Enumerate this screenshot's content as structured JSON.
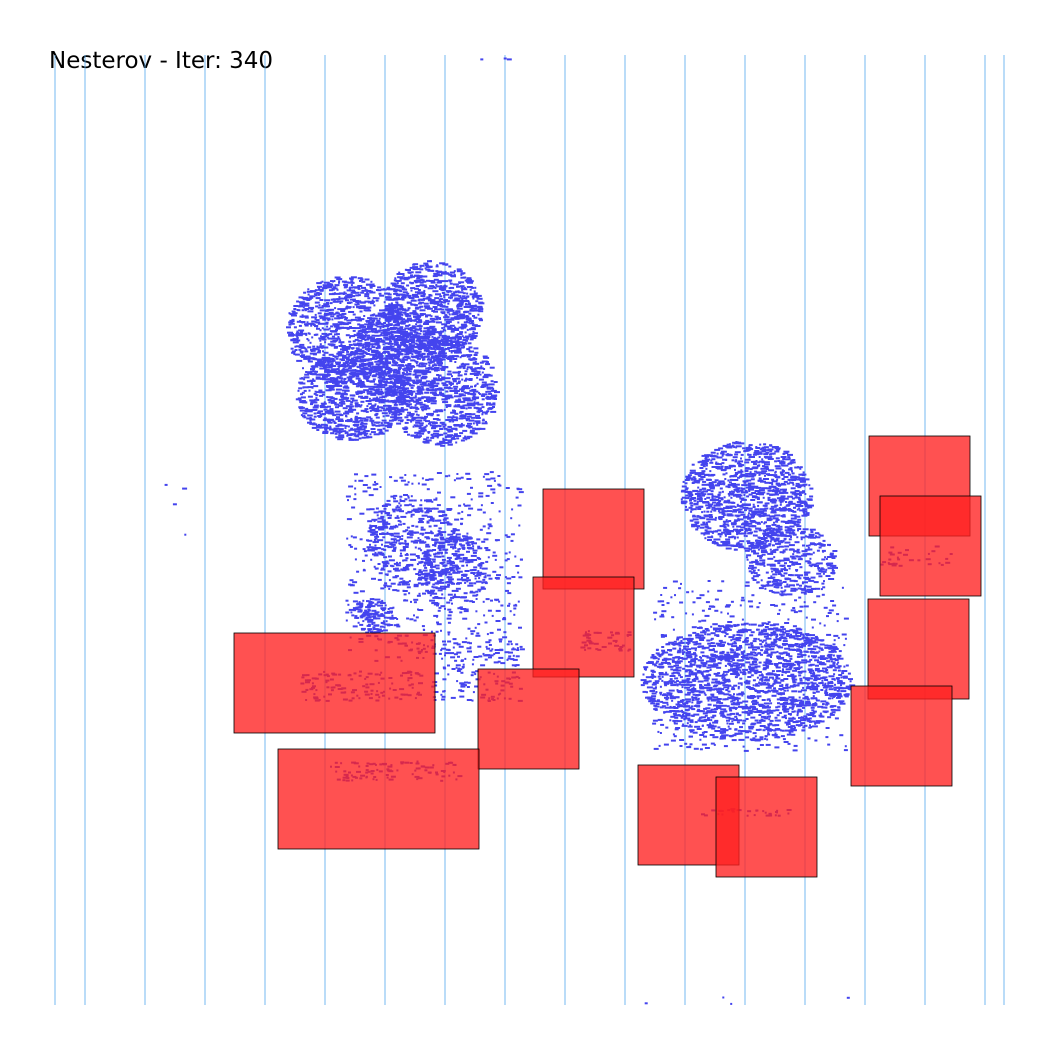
{
  "title": "Nesterov - Iter: 340",
  "colors": {
    "background": "#ffffff",
    "row_lines": "#55aaee",
    "cells": "#4444ee",
    "macros_fill": "#ff2020",
    "macros_stroke": "#000000"
  }
}
